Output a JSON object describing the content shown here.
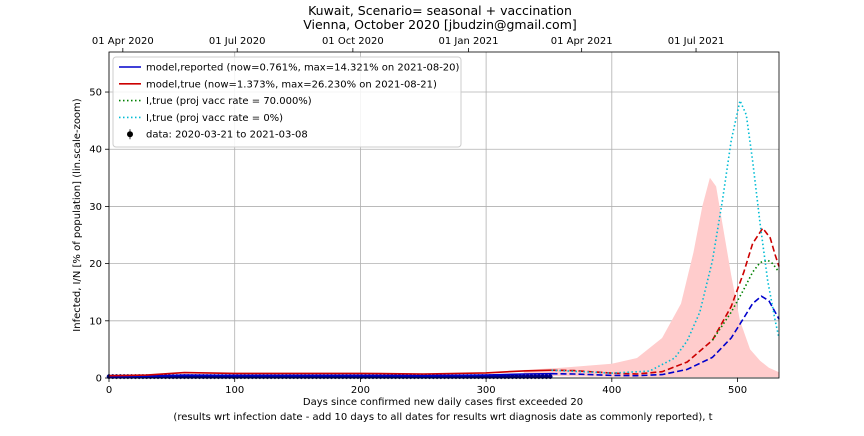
{
  "chart_data": {
    "type": "line",
    "title_line1": "Kuwait, Scenario= seasonal + vaccination",
    "title_line2": "Vienna, October 2020 [jbudzin@gmail.com]",
    "xlabel_line1": "Days since confirmed new daily cases first exceeded 20",
    "xlabel_line2": "(results wrt infection date - add 10 days to all dates for results wrt diagnosis date as commonly reported), t",
    "ylabel": "Infected, I/N [% of population] (lin.scale-zoom)",
    "xlim": [
      0,
      533
    ],
    "ylim": [
      0,
      57
    ],
    "grid": true,
    "legend_position": "top-left",
    "x_ticks": [
      0,
      100,
      200,
      300,
      400,
      500
    ],
    "y_ticks": [
      0,
      10,
      20,
      30,
      40,
      50
    ],
    "top_axis": {
      "labels": [
        "01 Apr 2020",
        "01 Jul 2020",
        "01 Oct 2020",
        "01 Jan 2021",
        "01 Apr 2021",
        "01 Jul 2021"
      ],
      "days": [
        11,
        102,
        194,
        286,
        376,
        467
      ]
    },
    "series": [
      {
        "name": "model,reported (now=0.761%, max=14.321% on 2021-08-20)",
        "color": "#0000cc",
        "style": "solid-then-dashed",
        "switch_day": 352,
        "x": [
          0,
          30,
          60,
          100,
          150,
          200,
          250,
          300,
          330,
          352,
          370,
          400,
          420,
          440,
          460,
          480,
          495,
          505,
          512,
          519,
          525,
          530,
          533
        ],
        "y": [
          0.2,
          0.3,
          0.5,
          0.45,
          0.45,
          0.45,
          0.4,
          0.5,
          0.7,
          0.76,
          0.7,
          0.45,
          0.4,
          0.6,
          1.5,
          3.6,
          7.0,
          10.5,
          13.0,
          14.3,
          13.5,
          11.5,
          10.3
        ]
      },
      {
        "name": "model,true (now=1.373%, max=26.230% on 2021-08-21)",
        "color": "#cc0000",
        "style": "solid-then-dashed",
        "switch_day": 352,
        "x": [
          0,
          30,
          60,
          100,
          150,
          200,
          250,
          300,
          330,
          352,
          370,
          400,
          420,
          440,
          460,
          480,
          495,
          505,
          512,
          520,
          526,
          530,
          533
        ],
        "y": [
          0.4,
          0.5,
          0.95,
          0.8,
          0.8,
          0.8,
          0.7,
          0.9,
          1.25,
          1.37,
          1.3,
          0.85,
          0.7,
          1.1,
          2.8,
          6.6,
          12.5,
          18.5,
          23.5,
          26.2,
          24.5,
          21.5,
          19.5
        ]
      },
      {
        "name": "I,true (proj vacc rate = 70.000%)",
        "color": "#008000",
        "style": "dotted",
        "x": [
          480,
          495,
          505,
          512,
          518,
          524,
          528,
          533
        ],
        "y": [
          6.6,
          11.5,
          15.5,
          18.5,
          20.2,
          20.6,
          20.0,
          18.5
        ]
      },
      {
        "name": "I,true (proj vacc rate = 0%)",
        "color": "#00bcd4",
        "style": "dotted",
        "x": [
          352,
          400,
          430,
          450,
          460,
          470,
          480,
          488,
          495,
          502,
          507,
          512,
          518,
          524,
          530,
          533
        ],
        "y": [
          1.37,
          0.85,
          1.2,
          3.5,
          6.5,
          11.5,
          20.5,
          31.0,
          41.5,
          48.5,
          46.0,
          38.0,
          27.0,
          17.0,
          10.0,
          7.0
        ]
      }
    ],
    "band": {
      "color": "#ffcccc",
      "x": [
        330,
        360,
        400,
        420,
        440,
        455,
        465,
        472,
        478,
        483,
        488,
        495,
        502,
        510,
        518,
        525,
        533
      ],
      "upper": [
        1.4,
        1.8,
        2.5,
        3.5,
        7.0,
        13.0,
        22.0,
        30.0,
        35.0,
        33.5,
        27.0,
        18.0,
        10.0,
        5.0,
        3.0,
        1.8,
        1.0
      ],
      "lower": [
        0.4,
        0.3,
        0.2,
        0.15,
        0.15,
        0.15,
        0.15,
        0.15,
        0.15,
        0.15,
        0.15,
        0.15,
        0.15,
        0.15,
        0.15,
        0.15,
        0.15
      ]
    },
    "data_points": {
      "name": "data: 2020-03-21 to 2021-03-08",
      "color": "#000080",
      "x_start": 0,
      "x_end": 352,
      "y_level": 0.25
    }
  }
}
